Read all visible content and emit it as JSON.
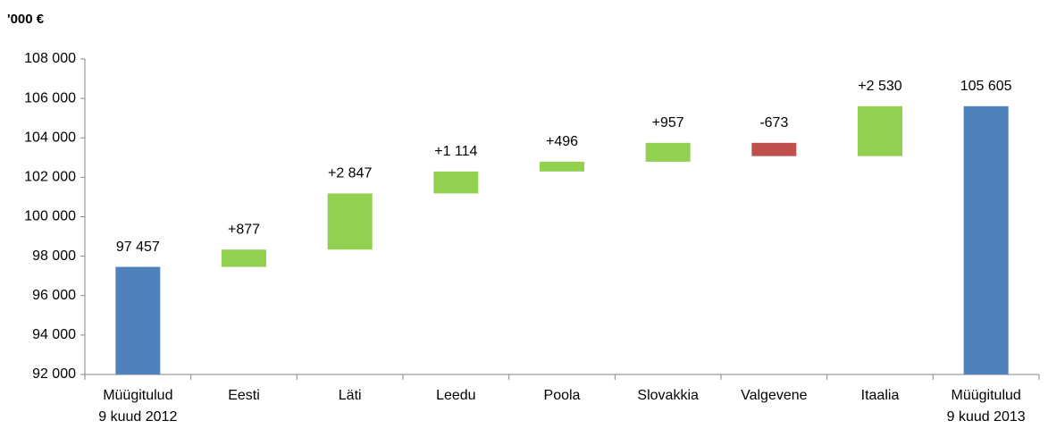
{
  "chart_data": {
    "type": "waterfall",
    "axis_label": "'000 €",
    "categories": [
      "Müügitulud\n9 kuud 2012",
      "Eesti",
      "Läti",
      "Leedu",
      "Poola",
      "Slovakkia",
      "Valgevene",
      "Itaalia",
      "Müügitulud\n9 kuud 2013"
    ],
    "values": [
      97457,
      877,
      2847,
      1114,
      496,
      957,
      -673,
      2530,
      105605
    ],
    "value_labels": [
      "97 457",
      "+877",
      "+2 847",
      "+1 114",
      "+496",
      "+957",
      "-673",
      "+2 530",
      "105 605"
    ],
    "is_total": [
      true,
      false,
      false,
      false,
      false,
      false,
      false,
      false,
      true
    ],
    "colors": {
      "total": "#4f81bd",
      "increase": "#92d050",
      "decrease": "#c0504d"
    },
    "ylim": [
      92000,
      108000
    ],
    "yticks": [
      {
        "value": 92000,
        "label": "92 000"
      },
      {
        "value": 94000,
        "label": "94 000"
      },
      {
        "value": 96000,
        "label": "96 000"
      },
      {
        "value": 98000,
        "label": "98 000"
      },
      {
        "value": 100000,
        "label": "100 000"
      },
      {
        "value": 102000,
        "label": "102 000"
      },
      {
        "value": 104000,
        "label": "104 000"
      },
      {
        "value": 106000,
        "label": "106 000"
      },
      {
        "value": 108000,
        "label": "108 000"
      }
    ],
    "grid": false
  }
}
